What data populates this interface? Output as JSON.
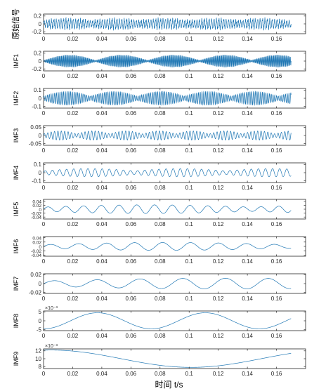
{
  "figure": {
    "xlabel": "时间 t/s",
    "line_color": "#1f77b4",
    "axis_color": "#262626",
    "x_ticks": [
      "0",
      "0.02",
      "0.04",
      "0.06",
      "0.08",
      "0.1",
      "0.12",
      "0.14",
      "0.16"
    ]
  },
  "chart_data": [
    {
      "type": "line",
      "ylabel": "原始信号",
      "ylim": [
        -0.25,
        0.25
      ],
      "yticks": [
        -0.2,
        0,
        0.2
      ],
      "ytick_labels": [
        "-0.2",
        "0",
        "0.2"
      ],
      "exponent": "",
      "series": [
        {
          "x": [
            0,
            0.17
          ],
          "components": [
            {
              "amp": 0.12,
              "freq": 600,
              "mod": [
                0.6,
                0.4,
                30
              ]
            },
            {
              "amp": 0.05,
              "freq": 2100,
              "mod": [
                0.3,
                0.7,
                95
              ]
            }
          ]
        }
      ]
    },
    {
      "type": "line",
      "ylabel": "IMF1",
      "ylim": [
        -0.25,
        0.25
      ],
      "yticks": [
        -0.2,
        0,
        0.2
      ],
      "ytick_labels": [
        "-0.2",
        "0",
        "0.2"
      ],
      "exponent": "",
      "series": [
        {
          "x": [
            0,
            0.17
          ],
          "components": [
            {
              "amp": 0.16,
              "freq": 1400,
              "mod": [
                0.1,
                0.9,
                28
              ]
            }
          ]
        }
      ]
    },
    {
      "type": "line",
      "ylabel": "IMF2",
      "ylim": [
        -0.12,
        0.12
      ],
      "yticks": [
        -0.1,
        0,
        0.1
      ],
      "ytick_labels": [
        "-0.1",
        "0",
        "0.1"
      ],
      "exponent": "",
      "series": [
        {
          "x": [
            0,
            0.17
          ],
          "components": [
            {
              "amp": 0.085,
              "freq": 820,
              "mod": [
                0.3,
                0.7,
                31
              ]
            }
          ]
        }
      ]
    },
    {
      "type": "line",
      "ylabel": "IMF3",
      "ylim": [
        -0.06,
        0.06
      ],
      "yticks": [
        -0.05,
        0,
        0.05
      ],
      "ytick_labels": [
        "-0.05",
        "0",
        "0.05"
      ],
      "exponent": "",
      "series": [
        {
          "x": [
            0,
            0.17
          ],
          "components": [
            {
              "amp": 0.028,
              "freq": 430,
              "mod": [
                0.35,
                0.65,
                44
              ]
            }
          ]
        }
      ]
    },
    {
      "type": "line",
      "ylabel": "IMF4",
      "ylim": [
        -0.12,
        0.12
      ],
      "yticks": [
        -0.1,
        0,
        0.1
      ],
      "ytick_labels": [
        "-0.1",
        "0",
        "0.1"
      ],
      "exponent": "",
      "series": [
        {
          "x": [
            0,
            0.17
          ],
          "components": [
            {
              "amp": 0.05,
              "freq": 205,
              "mod": [
                0.45,
                0.55,
                16
              ]
            }
          ]
        }
      ]
    },
    {
      "type": "line",
      "ylabel": "IMF5",
      "ylim": [
        -0.05,
        0.05
      ],
      "yticks": [
        -0.04,
        -0.02,
        0,
        0.02,
        0.04
      ],
      "ytick_labels": [
        "-0.04",
        "-0.02",
        "0",
        "0.02",
        "0.04"
      ],
      "exponent": "",
      "series": [
        {
          "x": [
            0,
            0.17
          ],
          "components": [
            {
              "amp": 0.022,
              "freq": 82,
              "mod": [
                0.5,
                0.5,
                7
              ]
            }
          ]
        }
      ]
    },
    {
      "type": "line",
      "ylabel": "IMF6",
      "ylim": [
        -0.045,
        0.045
      ],
      "yticks": [
        -0.04,
        -0.02,
        0,
        0.02,
        0.04
      ],
      "ytick_labels": [
        "-0.04",
        "-0.02",
        "0",
        "0.02",
        "0.04"
      ],
      "exponent": "",
      "series": [
        {
          "x": [
            0,
            0.17
          ],
          "components": [
            {
              "amp": 0.018,
              "freq": 52,
              "mod": [
                0.45,
                0.55,
                6
              ]
            }
          ]
        }
      ]
    },
    {
      "type": "line",
      "ylabel": "IMF7",
      "ylim": [
        -0.022,
        0.022
      ],
      "yticks": [
        -0.02,
        0,
        0.02
      ],
      "ytick_labels": [
        "-0.02",
        "0",
        "0.02"
      ],
      "exponent": "",
      "series": [
        {
          "x": [
            0,
            0.17
          ],
          "components": [
            {
              "amp": 0.012,
              "freq": 34,
              "mod": [
                0.5,
                0.5,
                4
              ]
            }
          ]
        }
      ]
    },
    {
      "type": "line",
      "ylabel": "IMF8",
      "ylim": [
        -0.0055,
        0.0055
      ],
      "yticks": [
        -0.005,
        0,
        0.005
      ],
      "ytick_labels": [
        "-5",
        "0",
        "5"
      ],
      "exponent": "×10⁻³",
      "series": [
        {
          "x": [
            0,
            0.17
          ],
          "components": [
            {
              "amp": 0.0045,
              "freq": 13.5,
              "phase": -1.57
            }
          ]
        }
      ]
    },
    {
      "type": "line",
      "ylabel": "IMF9",
      "ylim": [
        0.0075,
        0.0125
      ],
      "yticks": [
        0.008,
        0.01,
        0.012
      ],
      "ytick_labels": [
        "8",
        "10",
        "12"
      ],
      "exponent": "×10⁻³",
      "series": [
        {
          "x": [
            0,
            0.17
          ],
          "offset": 0.01,
          "components": [
            {
              "amp": 0.0022,
              "freq": 5.2,
              "phase": 1.4
            }
          ]
        }
      ]
    }
  ]
}
